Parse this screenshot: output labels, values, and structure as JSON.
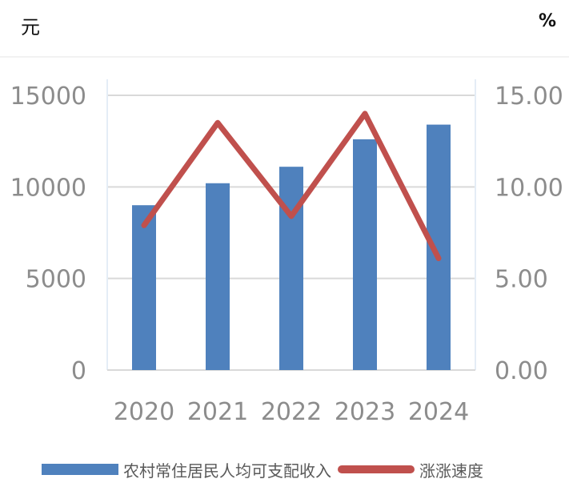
{
  "chart_data": {
    "type": "bar+line",
    "left_unit": "元",
    "right_unit": "%",
    "categories": [
      "2020",
      "2021",
      "2022",
      "2023",
      "2024"
    ],
    "series": [
      {
        "name": "农村常住居民人均可支配收入",
        "type": "bar",
        "axis": "left",
        "color": "#4f81bd",
        "values": [
          9000,
          10200,
          11100,
          12600,
          13400
        ]
      },
      {
        "name": "涨涨速度",
        "type": "line",
        "axis": "right",
        "color": "#c0504d",
        "values": [
          7.9,
          13.5,
          8.4,
          14.0,
          6.1
        ]
      }
    ],
    "left_axis": {
      "min": 0,
      "max": 15000,
      "ticks": [
        "0",
        "5000",
        "10000",
        "15000"
      ]
    },
    "right_axis": {
      "min": 0,
      "max": 15,
      "ticks": [
        "0.00",
        "5.00",
        "10.00",
        "15.00"
      ]
    },
    "grid": true,
    "legend_position": "bottom"
  }
}
